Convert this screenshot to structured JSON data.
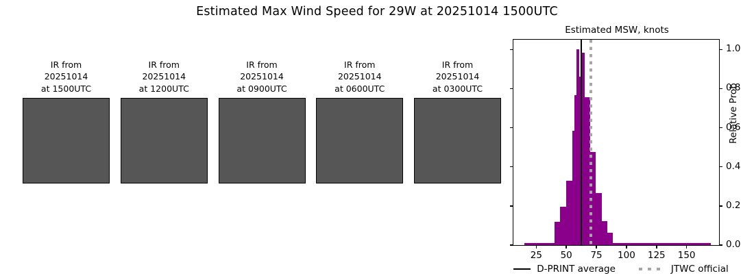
{
  "title": "Estimated Max Wind Speed for 29W at 20251014 1500UTC",
  "satellite_panels": [
    {
      "label": "IR from\n20251014\nat 1500UTC",
      "icon": "ir-satellite-image"
    },
    {
      "label": "IR from\n20251014\nat 1200UTC",
      "icon": "ir-satellite-image"
    },
    {
      "label": "IR from\n20251014\nat 0900UTC",
      "icon": "ir-satellite-image"
    },
    {
      "label": "IR from\n20251014\nat 0600UTC",
      "icon": "ir-satellite-image"
    },
    {
      "label": "IR from\n20251014\nat 0300UTC",
      "icon": "ir-satellite-image"
    }
  ],
  "chart_data": {
    "type": "bar",
    "title": "Estimated MSW, knots",
    "xlabel": "",
    "ylabel": "Relative Prob",
    "xlim": [
      6,
      177
    ],
    "ylim": [
      0,
      1.05
    ],
    "xticks": [
      25,
      50,
      75,
      100,
      125,
      150
    ],
    "yticks": [
      0.0,
      0.2,
      0.4,
      0.6,
      0.8,
      1.0
    ],
    "grid": false,
    "bar_color": "#8B008B",
    "bins": [
      {
        "from": 15,
        "to": 40,
        "height": 0.012
      },
      {
        "from": 40,
        "to": 45,
        "height": 0.118
      },
      {
        "from": 45,
        "to": 50,
        "height": 0.197
      },
      {
        "from": 50,
        "to": 55,
        "height": 0.33
      },
      {
        "from": 55,
        "to": 57,
        "height": 0.585
      },
      {
        "from": 57,
        "to": 58.5,
        "height": 0.765
      },
      {
        "from": 58.5,
        "to": 60.5,
        "height": 1.0
      },
      {
        "from": 60.5,
        "to": 62.5,
        "height": 0.86
      },
      {
        "from": 62.5,
        "to": 65.5,
        "height": 0.985
      },
      {
        "from": 65.5,
        "to": 70,
        "height": 0.755
      },
      {
        "from": 70,
        "to": 74.5,
        "height": 0.477
      },
      {
        "from": 74.5,
        "to": 79.5,
        "height": 0.265
      },
      {
        "from": 79.5,
        "to": 84,
        "height": 0.123
      },
      {
        "from": 84,
        "to": 88.5,
        "height": 0.064
      },
      {
        "from": 88.5,
        "to": 170,
        "height": 0.012
      }
    ],
    "vlines": [
      {
        "name": "D-PRINT average",
        "x": 62.4,
        "style": "solid",
        "color": "#000000",
        "width": 2
      },
      {
        "name": "JTWC official",
        "x": 70.4,
        "style": "dotted",
        "color": "#a6a6a6",
        "width": 4
      }
    ],
    "legend_position": "below"
  }
}
